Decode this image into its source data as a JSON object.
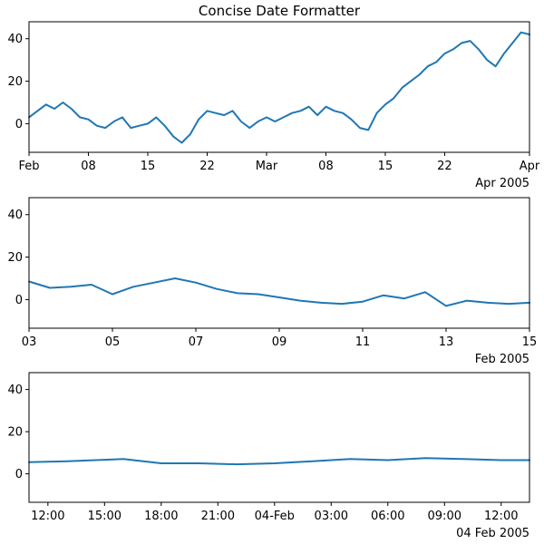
{
  "chart_data": [
    {
      "type": "line",
      "title": "Concise Date Formatter",
      "xlabel": "",
      "ylabel": "",
      "xlim": [
        "2005-02-01",
        "2005-04-01"
      ],
      "ylim": [
        -13.5,
        48
      ],
      "yticks": [
        0,
        20,
        40
      ],
      "xtick_labels": [
        {
          "date": "2005-02-01",
          "label": "Feb"
        },
        {
          "date": "2005-02-08",
          "label": "08"
        },
        {
          "date": "2005-02-15",
          "label": "15"
        },
        {
          "date": "2005-02-22",
          "label": "22"
        },
        {
          "date": "2005-03-01",
          "label": "Mar"
        },
        {
          "date": "2005-03-08",
          "label": "08"
        },
        {
          "date": "2005-03-15",
          "label": "15"
        },
        {
          "date": "2005-03-22",
          "label": "22"
        },
        {
          "date": "2005-04-01",
          "label": "Apr"
        }
      ],
      "offset_label": "Apr 2005",
      "series": [
        {
          "color": "#1f77b4",
          "x": [
            "2005-02-01",
            "2005-02-02",
            "2005-02-03",
            "2005-02-04",
            "2005-02-05",
            "2005-02-06",
            "2005-02-07",
            "2005-02-08",
            "2005-02-09",
            "2005-02-10",
            "2005-02-11",
            "2005-02-12",
            "2005-02-13",
            "2005-02-14",
            "2005-02-15",
            "2005-02-16",
            "2005-02-17",
            "2005-02-18",
            "2005-02-19",
            "2005-02-20",
            "2005-02-21",
            "2005-02-22",
            "2005-02-23",
            "2005-02-24",
            "2005-02-25",
            "2005-02-26",
            "2005-02-27",
            "2005-02-28",
            "2005-03-01",
            "2005-03-02",
            "2005-03-03",
            "2005-03-04",
            "2005-03-05",
            "2005-03-06",
            "2005-03-07",
            "2005-03-08",
            "2005-03-09",
            "2005-03-10",
            "2005-03-11",
            "2005-03-12",
            "2005-03-13",
            "2005-03-14",
            "2005-03-15",
            "2005-03-16",
            "2005-03-17",
            "2005-03-18",
            "2005-03-19",
            "2005-03-20",
            "2005-03-21",
            "2005-03-22",
            "2005-03-23",
            "2005-03-24",
            "2005-03-25",
            "2005-03-26",
            "2005-03-27",
            "2005-03-28",
            "2005-03-29",
            "2005-03-30",
            "2005-03-31",
            "2005-04-01"
          ],
          "y": [
            3,
            6,
            9,
            7,
            10,
            7,
            3,
            2,
            -1,
            -2,
            1,
            3,
            -2,
            -1,
            0,
            3,
            -1,
            -6,
            -9,
            -5,
            2,
            6,
            5,
            4,
            6,
            1,
            -2,
            1,
            3,
            1,
            3,
            5,
            6,
            8,
            4,
            8,
            6,
            5,
            2,
            -2,
            -3,
            5,
            9,
            12,
            17,
            20,
            23,
            27,
            29,
            33,
            35,
            38,
            39,
            35,
            30,
            27,
            33,
            38,
            43,
            42
          ]
        }
      ]
    },
    {
      "type": "line",
      "title": "",
      "xlabel": "",
      "ylabel": "",
      "xlim": [
        "2005-02-03",
        "2005-02-15"
      ],
      "ylim": [
        -13.5,
        48
      ],
      "yticks": [
        0,
        20,
        40
      ],
      "xtick_labels": [
        {
          "date": "2005-02-03",
          "label": "03"
        },
        {
          "date": "2005-02-05",
          "label": "05"
        },
        {
          "date": "2005-02-07",
          "label": "07"
        },
        {
          "date": "2005-02-09",
          "label": "09"
        },
        {
          "date": "2005-02-11",
          "label": "11"
        },
        {
          "date": "2005-02-13",
          "label": "13"
        },
        {
          "date": "2005-02-15",
          "label": "15"
        }
      ],
      "offset_label": "Feb 2005",
      "series": [
        {
          "color": "#1f77b4",
          "x": [
            "2005-02-03",
            "2005-02-03T12:00",
            "2005-02-04",
            "2005-02-04T12:00",
            "2005-02-05",
            "2005-02-05T12:00",
            "2005-02-06",
            "2005-02-06T12:00",
            "2005-02-07",
            "2005-02-07T12:00",
            "2005-02-08",
            "2005-02-08T12:00",
            "2005-02-09",
            "2005-02-09T12:00",
            "2005-02-10",
            "2005-02-10T12:00",
            "2005-02-11",
            "2005-02-11T12:00",
            "2005-02-12",
            "2005-02-12T12:00",
            "2005-02-13",
            "2005-02-13T12:00",
            "2005-02-14",
            "2005-02-14T12:00",
            "2005-02-15"
          ],
          "y": [
            8.5,
            5.5,
            6,
            7,
            2.5,
            6,
            8,
            10,
            8,
            5,
            3,
            2.5,
            1,
            -0.5,
            -1.5,
            -2,
            -1,
            2,
            0.5,
            3.5,
            -3,
            -0.5,
            -1.5,
            -2,
            -1.5
          ]
        }
      ]
    },
    {
      "type": "line",
      "title": "",
      "xlabel": "",
      "ylabel": "",
      "xlim": [
        "2005-02-03T11:00",
        "2005-02-04T13:30"
      ],
      "ylim": [
        -13.5,
        48
      ],
      "yticks": [
        0,
        20,
        40
      ],
      "xtick_labels": [
        {
          "date": "2005-02-03T12:00",
          "label": "12:00"
        },
        {
          "date": "2005-02-03T15:00",
          "label": "15:00"
        },
        {
          "date": "2005-02-03T18:00",
          "label": "18:00"
        },
        {
          "date": "2005-02-03T21:00",
          "label": "21:00"
        },
        {
          "date": "2005-02-04T00:00",
          "label": "04-Feb"
        },
        {
          "date": "2005-02-04T03:00",
          "label": "03:00"
        },
        {
          "date": "2005-02-04T06:00",
          "label": "06:00"
        },
        {
          "date": "2005-02-04T09:00",
          "label": "09:00"
        },
        {
          "date": "2005-02-04T12:00",
          "label": "12:00"
        }
      ],
      "offset_label": "04 Feb 2005",
      "series": [
        {
          "color": "#1f77b4",
          "x": [
            "2005-02-03T11:00",
            "2005-02-03T13:00",
            "2005-02-03T16:00",
            "2005-02-03T18:00",
            "2005-02-03T20:00",
            "2005-02-03T22:00",
            "2005-02-04T00:00",
            "2005-02-04T02:00",
            "2005-02-04T04:00",
            "2005-02-04T06:00",
            "2005-02-04T08:00",
            "2005-02-04T10:00",
            "2005-02-04T12:00",
            "2005-02-04T13:30"
          ],
          "y": [
            5.5,
            6,
            7,
            5,
            5,
            4.5,
            5,
            6,
            7,
            6.5,
            7.5,
            7,
            6.5,
            6.5
          ]
        }
      ]
    }
  ]
}
